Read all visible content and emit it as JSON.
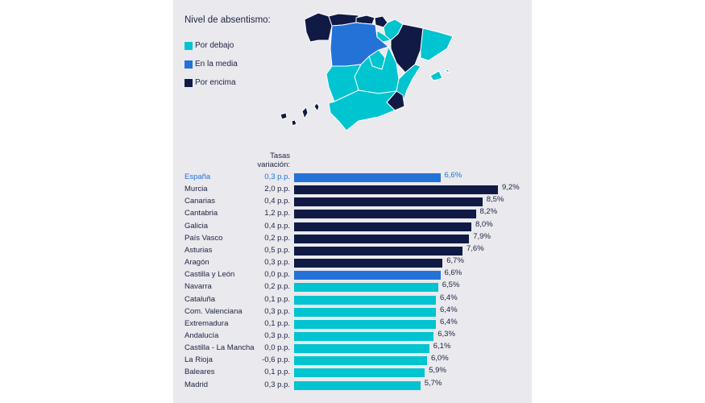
{
  "colors": {
    "below": "#00c4cf",
    "average": "#2472d8",
    "above": "#111a45",
    "highlight_text": "#2472d8"
  },
  "legend": {
    "title": "Nivel de absentismo:",
    "items": [
      {
        "key": "below",
        "label": "Por debajo"
      },
      {
        "key": "average",
        "label": "En la media"
      },
      {
        "key": "above",
        "label": "Por encima"
      }
    ]
  },
  "chart_data": {
    "type": "bar",
    "orientation": "horizontal",
    "column_header": [
      "Tasas",
      "variación:"
    ],
    "categories": [
      "España",
      "Murcia",
      "Canarias",
      "Cantabria",
      "Galicia",
      "País Vasco",
      "Asturias",
      "Aragón",
      "Castilla y León",
      "Navarra",
      "Cataluña",
      "Com. Valenciana",
      "Extremadura",
      "Andalucía",
      "Castilla - La Mancha",
      "La Rioja",
      "Baleares",
      "Madrid"
    ],
    "values": [
      6.6,
      9.2,
      8.5,
      8.2,
      8.0,
      7.9,
      7.6,
      6.7,
      6.6,
      6.5,
      6.4,
      6.4,
      6.4,
      6.3,
      6.1,
      6.0,
      5.9,
      5.7
    ],
    "value_labels": [
      "6,6%",
      "9,2%",
      "8,5%",
      "8,2%",
      "8,0%",
      "7,9%",
      "7,6%",
      "6,7%",
      "6,6%",
      "6,5%",
      "6,4%",
      "6,4%",
      "6,4%",
      "6,3%",
      "6,1%",
      "6,0%",
      "5,9%",
      "5,7%"
    ],
    "variation": [
      "0,3 p.p.",
      "2,0 p.p.",
      "0,4 p.p.",
      "1,2 p.p.",
      "0,4 p.p.",
      "0,2 p.p.",
      "0,5 p.p.",
      "0,3 p.p.",
      "0,0 p.p.",
      "0,2 p.p.",
      "0,1 p.p.",
      "0,3 p.p.",
      "0,1 p.p.",
      "0,3 p.p.",
      "0,0 p.p.",
      "-0,6 p.p.",
      "0,1 p.p.",
      "0,3 p.p."
    ],
    "levels": [
      "average",
      "above",
      "above",
      "above",
      "above",
      "above",
      "above",
      "above",
      "average",
      "below",
      "below",
      "below",
      "below",
      "below",
      "below",
      "below",
      "below",
      "below"
    ],
    "highlight": "España"
  }
}
